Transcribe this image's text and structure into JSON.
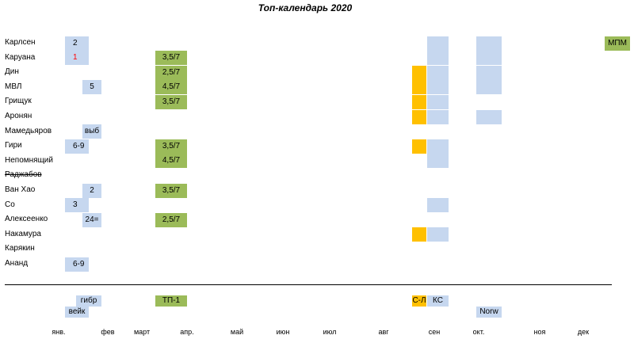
{
  "chart_data": {
    "type": "table",
    "title": "Топ-календарь 2020",
    "players": [
      {
        "name": "Карлсен",
        "struck": false
      },
      {
        "name": "Каруана",
        "struck": false
      },
      {
        "name": "Дин",
        "struck": false
      },
      {
        "name": "МВЛ",
        "struck": false
      },
      {
        "name": "Грищук",
        "struck": false
      },
      {
        "name": "Аронян",
        "struck": false
      },
      {
        "name": "Мамедьяров",
        "struck": false
      },
      {
        "name": "Гири",
        "struck": false
      },
      {
        "name": "Непомнящий",
        "struck": false
      },
      {
        "name": "Раджабов",
        "struck": true
      },
      {
        "name": "Ван Хао",
        "struck": false
      },
      {
        "name": "Со",
        "struck": false
      },
      {
        "name": "Алексеенко",
        "struck": false
      },
      {
        "name": "Накамура",
        "struck": false
      },
      {
        "name": "Карякин",
        "struck": false
      },
      {
        "name": "Ананд",
        "struck": false
      }
    ],
    "months": [
      "янв.",
      "фев",
      "март",
      "апр.",
      "май",
      "июн",
      "июл",
      "авг",
      "сен",
      "окт.",
      "ноя",
      "дек"
    ],
    "event_labels": [
      {
        "event": "gibr",
        "label": "гибр"
      },
      {
        "event": "wijk",
        "label": "вейк"
      },
      {
        "event": "tp1",
        "label": "ТП-1"
      },
      {
        "event": "sl",
        "label": "С-Л"
      },
      {
        "event": "ks",
        "label": "КС"
      },
      {
        "event": "norw",
        "label": "Norw"
      }
    ],
    "results": [
      {
        "player": 0,
        "event": "wijk",
        "text": "2"
      },
      {
        "player": 0,
        "event": "ks",
        "text": ""
      },
      {
        "player": 0,
        "event": "norw",
        "text": ""
      },
      {
        "player": 0,
        "event": "mpm",
        "text": "МПМ"
      },
      {
        "player": 1,
        "event": "wijk",
        "text": "1",
        "color": "#ff0000"
      },
      {
        "player": 1,
        "event": "tp1",
        "text": "3,5/7"
      },
      {
        "player": 1,
        "event": "ks",
        "text": ""
      },
      {
        "player": 1,
        "event": "norw",
        "text": ""
      },
      {
        "player": 2,
        "event": "tp1",
        "text": "2,5/7"
      },
      {
        "player": 2,
        "event": "sl",
        "text": ""
      },
      {
        "player": 2,
        "event": "ks",
        "text": ""
      },
      {
        "player": 2,
        "event": "norw",
        "text": ""
      },
      {
        "player": 3,
        "event": "gibr",
        "text": "5"
      },
      {
        "player": 3,
        "event": "tp1",
        "text": "4,5/7"
      },
      {
        "player": 3,
        "event": "sl",
        "text": ""
      },
      {
        "player": 3,
        "event": "ks",
        "text": ""
      },
      {
        "player": 3,
        "event": "norw",
        "text": ""
      },
      {
        "player": 4,
        "event": "tp1",
        "text": "3,5/7"
      },
      {
        "player": 4,
        "event": "sl",
        "text": ""
      },
      {
        "player": 4,
        "event": "ks",
        "text": ""
      },
      {
        "player": 5,
        "event": "sl",
        "text": ""
      },
      {
        "player": 5,
        "event": "ks",
        "text": ""
      },
      {
        "player": 5,
        "event": "norw",
        "text": ""
      },
      {
        "player": 6,
        "event": "gibr",
        "text": "выб"
      },
      {
        "player": 7,
        "event": "wijk",
        "text": "6-9"
      },
      {
        "player": 7,
        "event": "tp1",
        "text": "3,5/7"
      },
      {
        "player": 7,
        "event": "sl",
        "text": ""
      },
      {
        "player": 7,
        "event": "ks",
        "text": ""
      },
      {
        "player": 8,
        "event": "tp1",
        "text": "4,5/7"
      },
      {
        "player": 8,
        "event": "ks",
        "text": ""
      },
      {
        "player": 10,
        "event": "gibr",
        "text": "2"
      },
      {
        "player": 10,
        "event": "tp1",
        "text": "3,5/7"
      },
      {
        "player": 11,
        "event": "wijk",
        "text": "3"
      },
      {
        "player": 11,
        "event": "ks",
        "text": ""
      },
      {
        "player": 12,
        "event": "gibr",
        "text": "24="
      },
      {
        "player": 12,
        "event": "tp1",
        "text": "2,5/7"
      },
      {
        "player": 13,
        "event": "sl",
        "text": ""
      },
      {
        "player": 13,
        "event": "ks",
        "text": ""
      },
      {
        "player": 15,
        "event": "wijk",
        "text": "6-9"
      }
    ]
  },
  "colors": {
    "light_blue": "#c6d7ef",
    "green": "#9bbb59",
    "orange": "#ffc000"
  }
}
